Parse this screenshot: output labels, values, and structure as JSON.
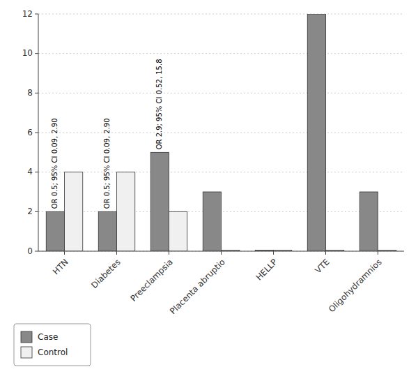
{
  "chart_data": {
    "type": "bar",
    "categories": [
      "HTN",
      "Diabetes",
      "Preeclampsia",
      "Placenta abruptio",
      "HELLP",
      "VTE",
      "Oligohydramnios"
    ],
    "series": [
      {
        "name": "Case",
        "color": "#888888",
        "values": [
          2,
          2,
          5,
          3,
          0.05,
          12,
          3
        ],
        "annotations": [
          "OR 0.5; 95% CI 0.09, 2.90",
          "OR 0.5; 95% CI 0.09, 2.90",
          "OR 2.9; 95% CI 0.52, 15.8",
          null,
          null,
          null,
          null
        ]
      },
      {
        "name": "Control",
        "color": "#f0f0f0",
        "values": [
          4,
          4,
          2,
          0.05,
          0.05,
          0.05,
          0.05
        ]
      }
    ],
    "ylim": [
      0,
      12
    ],
    "yticks": [
      0,
      2,
      4,
      6,
      8,
      10,
      12
    ],
    "grid": true,
    "legend": "bottom-left"
  }
}
